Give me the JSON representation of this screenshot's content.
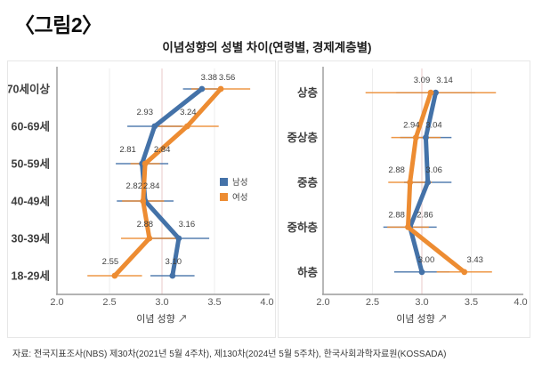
{
  "figure_label": "〈그림2〉",
  "title": "이념성향의 성별 차이(연령별, 경제계층별)",
  "source_note": "자료: 전국지표조사(NBS) 제30차(2021년 5월 4주차), 제130차(2024년 5월 5주차), 한국사회과학자료원(KOSSADA)",
  "legend": {
    "items": [
      {
        "label": "남성",
        "color": "#4472A8"
      },
      {
        "label": "여성",
        "color": "#ED8C32"
      }
    ]
  },
  "chart_data": [
    {
      "type": "line",
      "orientation": "horizontal-category",
      "categories": [
        "70세이상",
        "60-69세",
        "50-59세",
        "40-49세",
        "30-39세",
        "18-29세"
      ],
      "series": [
        {
          "name": "남성",
          "color": "#4472A8",
          "values": [
            3.38,
            2.93,
            2.81,
            2.84,
            3.16,
            3.1
          ],
          "error_bars": [
            [
              3.2,
              3.56
            ],
            [
              2.67,
              3.19
            ],
            [
              2.56,
              3.06
            ],
            [
              2.57,
              3.11
            ],
            [
              2.87,
              3.45
            ],
            [
              2.89,
              3.31
            ]
          ]
        },
        {
          "name": "여성",
          "color": "#ED8C32",
          "values": [
            3.56,
            3.24,
            2.84,
            2.82,
            2.88,
            2.55
          ],
          "error_bars": [
            [
              3.28,
              3.84
            ],
            [
              2.94,
              3.54
            ],
            [
              2.7,
              2.98
            ],
            [
              2.62,
              3.02
            ],
            [
              2.61,
              3.15
            ],
            [
              2.29,
              2.81
            ]
          ]
        }
      ],
      "xlabel": "이념 성향 ↗",
      "xlim": [
        2.0,
        4.0
      ],
      "xticks": [
        "2.0",
        "2.5",
        "3.0",
        "3.5",
        "4.0"
      ],
      "gridlines": [
        2.5,
        3.0,
        3.5
      ],
      "highlight_gridline": 3.0,
      "legend_position": "middle-right"
    },
    {
      "type": "line",
      "orientation": "horizontal-category",
      "categories": [
        "상층",
        "중상층",
        "중층",
        "중하층",
        "하층"
      ],
      "series": [
        {
          "name": "남성",
          "color": "#4472A8",
          "values": [
            3.14,
            3.04,
            3.06,
            2.88,
            3.0
          ],
          "error_bars": [
            [
              2.74,
              3.54
            ],
            [
              2.78,
              3.3
            ],
            [
              2.82,
              3.3
            ],
            [
              2.61,
              3.15
            ],
            [
              2.72,
              3.28
            ]
          ]
        },
        {
          "name": "여성",
          "color": "#ED8C32",
          "values": [
            3.09,
            2.94,
            2.88,
            2.86,
            3.43
          ],
          "error_bars": [
            [
              2.43,
              3.75
            ],
            [
              2.69,
              3.19
            ],
            [
              2.66,
              3.1
            ],
            [
              2.65,
              3.07
            ],
            [
              3.15,
              3.71
            ]
          ]
        }
      ],
      "xlabel": "이념 성향 ↗",
      "xlim": [
        2.0,
        4.0
      ],
      "xticks": [
        "2.0",
        "2.5",
        "3.0",
        "3.5",
        "4.0"
      ],
      "gridlines": [
        2.5,
        3.0,
        3.5
      ],
      "highlight_gridline": 3.0,
      "legend_position": "none"
    }
  ]
}
